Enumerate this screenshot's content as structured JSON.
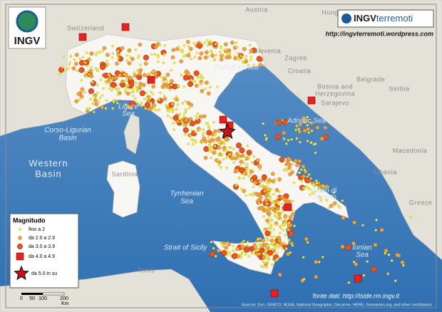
{
  "header": {
    "logo": "INGV",
    "brand_prefix": "INGV",
    "brand_suffix": "terremoti",
    "url": "http://ingvterremoti.wordpress.com"
  },
  "places": [
    "Austria",
    "Switzerland",
    "Hungary",
    "Slovenia",
    "Croatia",
    "Zagreb",
    "Bosnia and",
    "Herzegovina",
    "Sarajevo",
    "Belgrade",
    "Serbia",
    "Albania",
    "Macedonia",
    "Greece",
    "Sardinia",
    "Tunis"
  ],
  "seas": [
    "Gulf of Venice",
    "Ligure",
    "Sea",
    "Adriatic Sea",
    "Corso-Ligurian",
    "Basin",
    "Western",
    "Basin",
    "Tyrrhenian",
    "Sea",
    "Golfo di",
    "Taranto",
    "Ionian",
    "Sea",
    "Strait of Sicily"
  ],
  "legend": {
    "title": "Magnitudo",
    "items": [
      "fino a 2",
      "da 2.0 a 2.9",
      "da 3.0 a 3.9",
      "da 4.0 a 4.9",
      "da 5.0 in su"
    ]
  },
  "scale": {
    "labels": [
      "0",
      "50",
      "100",
      "200",
      "Km"
    ]
  },
  "source": "fonte dati: http://iside.rm.ingv.it",
  "attribution": "Sources: Esri, GEBCO, NOAA, National Geographic, DeLorme, HERE, Geonames.org, and other contributors"
}
